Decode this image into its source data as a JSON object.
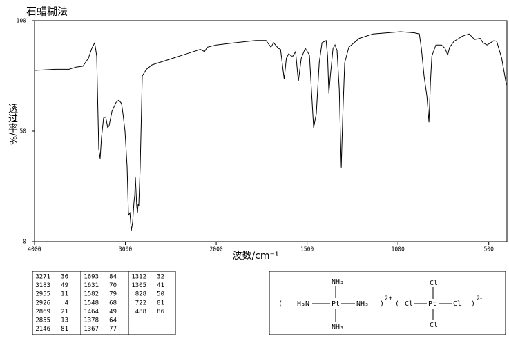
{
  "chart_data": {
    "type": "line",
    "title": "石蜡糊法",
    "xlabel": "波数/cm⁻¹",
    "ylabel": "透过率/%",
    "xlim": [
      4000,
      400
    ],
    "x_break": 2000,
    "xticks": [
      4000,
      3000,
      2000,
      1500,
      1000,
      500
    ],
    "ylim": [
      0,
      100
    ],
    "yticks": [
      0,
      50,
      100
    ],
    "x": [
      4000,
      3772,
      3620,
      3544,
      3468,
      3407,
      3369,
      3338,
      3316,
      3293,
      3278,
      3263,
      3240,
      3217,
      3194,
      3179,
      3148,
      3103,
      3072,
      3042,
      3027,
      3004,
      2981,
      2966,
      2950,
      2935,
      2920,
      2905,
      2897,
      2890,
      2875,
      2867,
      2860,
      2853,
      2837,
      2814,
      2768,
      2707,
      2555,
      2403,
      2251,
      2175,
      2129,
      2099,
      2000,
      1897,
      1783,
      1726,
      1699,
      1684,
      1658,
      1646,
      1626,
      1614,
      1601,
      1586,
      1578,
      1563,
      1548,
      1532,
      1510,
      1487,
      1464,
      1449,
      1433,
      1418,
      1395,
      1387,
      1380,
      1372,
      1357,
      1346,
      1335,
      1323,
      1312,
      1304,
      1293,
      1270,
      1213,
      1137,
      1061,
      985,
      909,
      882,
      871,
      856,
      840,
      829,
      821,
      813,
      791,
      760,
      741,
      726,
      715,
      692,
      646,
      608,
      578,
      547,
      532,
      509,
      471,
      456,
      429,
      403
    ],
    "series": [
      {
        "color": "#000000",
        "values": [
          77.5,
          78,
          78,
          79,
          79.4,
          83,
          87.5,
          90,
          84,
          42,
          37.5,
          47,
          56,
          56.5,
          51.5,
          52.5,
          59,
          63,
          64,
          62.5,
          58,
          50,
          34,
          12,
          13,
          5,
          9,
          18,
          21,
          29,
          16,
          13,
          17,
          16,
          34,
          75,
          78,
          80,
          82,
          84,
          86,
          87,
          86,
          88,
          89,
          90,
          91,
          91,
          88,
          90,
          87.5,
          87,
          73.5,
          83,
          85,
          84,
          84,
          86,
          72.5,
          83,
          87.5,
          84.5,
          51.5,
          58,
          81,
          90,
          91,
          84,
          67,
          75,
          87.5,
          89,
          86.5,
          69,
          33.5,
          56,
          81,
          88,
          92,
          94,
          94.5,
          95,
          94.5,
          94,
          87.5,
          75,
          65.6,
          54,
          72,
          84,
          89,
          89,
          87.5,
          84.5,
          88,
          90.6,
          93,
          94,
          91.5,
          92,
          90,
          89,
          91,
          90.6,
          83,
          71
        ]
      }
    ]
  },
  "peak_table": {
    "columns": [
      [
        [
          3271,
          36
        ],
        [
          3183,
          49
        ],
        [
          2955,
          11
        ],
        [
          2926,
          4
        ],
        [
          2869,
          21
        ],
        [
          2855,
          13
        ],
        [
          2146,
          81
        ]
      ],
      [
        [
          1693,
          84
        ],
        [
          1631,
          70
        ],
        [
          1582,
          79
        ],
        [
          1548,
          68
        ],
        [
          1464,
          49
        ],
        [
          1378,
          64
        ],
        [
          1367,
          77
        ]
      ],
      [
        [
          1312,
          32
        ],
        [
          1305,
          41
        ],
        [
          828,
          50
        ],
        [
          722,
          81
        ],
        [
          488,
          86
        ]
      ]
    ]
  },
  "structure": {
    "nh3_top": "NH₃",
    "h3n": "H₃N",
    "pt1": "Pt",
    "nh3_right": "NH₃",
    "nh3_bottom": "NH₃",
    "charge1": "2+",
    "cl_top": "Cl",
    "cl_left": "Cl",
    "pt2": "Pt",
    "cl_right": "Cl",
    "cl_bottom": "Cl",
    "charge2": "2-"
  }
}
